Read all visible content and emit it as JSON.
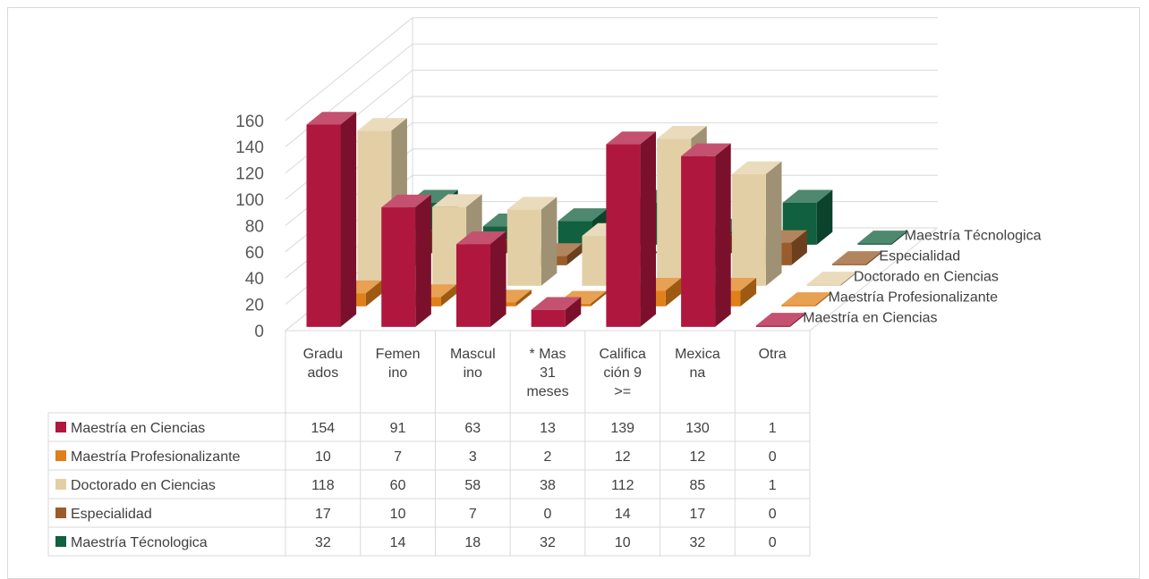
{
  "chart_data": {
    "type": "bar",
    "subtype": "3d-column-with-data-table",
    "categories": [
      [
        "Gradu",
        "ados"
      ],
      [
        "Femen",
        "ino"
      ],
      [
        "Mascul",
        "ino"
      ],
      [
        "* Mas",
        "31",
        "meses"
      ],
      [
        "Califica",
        "ción 9",
        ">="
      ],
      [
        "Mexica",
        "na"
      ],
      [
        "Otra"
      ]
    ],
    "series": [
      {
        "name": "Maestría en Ciencias",
        "color": "#b0173f",
        "values": [
          154,
          91,
          63,
          13,
          139,
          130,
          1
        ]
      },
      {
        "name": "Maestría Profesionalizante",
        "color": "#e0801a",
        "values": [
          10,
          7,
          3,
          2,
          12,
          12,
          0
        ]
      },
      {
        "name": "Doctorado en Ciencias",
        "color": "#e3cfa6",
        "values": [
          118,
          60,
          58,
          38,
          112,
          85,
          1
        ]
      },
      {
        "name": "Especialidad",
        "color": "#9a5c2a",
        "values": [
          17,
          10,
          7,
          0,
          14,
          17,
          0
        ]
      },
      {
        "name": "Maestría Técnologica",
        "color": "#11603f",
        "values": [
          32,
          14,
          18,
          32,
          10,
          32,
          0
        ]
      }
    ],
    "y_ticks": [
      "0",
      "20",
      "40",
      "60",
      "80",
      "100",
      "120",
      "140",
      "160"
    ],
    "ylim": [
      0,
      160
    ],
    "grid": true,
    "legend": "data-table-left"
  }
}
